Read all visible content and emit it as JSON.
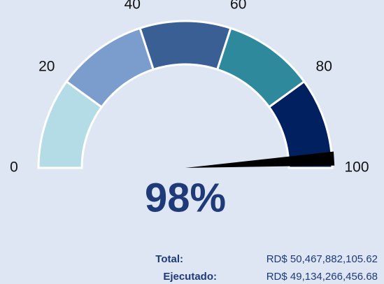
{
  "chart_data": {
    "type": "gauge",
    "value": 98,
    "value_label": "98%",
    "ylim": [
      0,
      100
    ],
    "yticks": [
      0,
      20,
      40,
      60,
      80,
      100
    ],
    "colors": [
      "#b3dce6",
      "#7b9dcd",
      "#3a5f94",
      "#2f899d",
      "#00205f"
    ],
    "needle_color": "#000000",
    "total_label": "Total:",
    "total_value": "RD$ 50,467,882,105.62",
    "executed_label": "Ejecutado:",
    "executed_value": "RD$ 49,134,266,456.68"
  }
}
